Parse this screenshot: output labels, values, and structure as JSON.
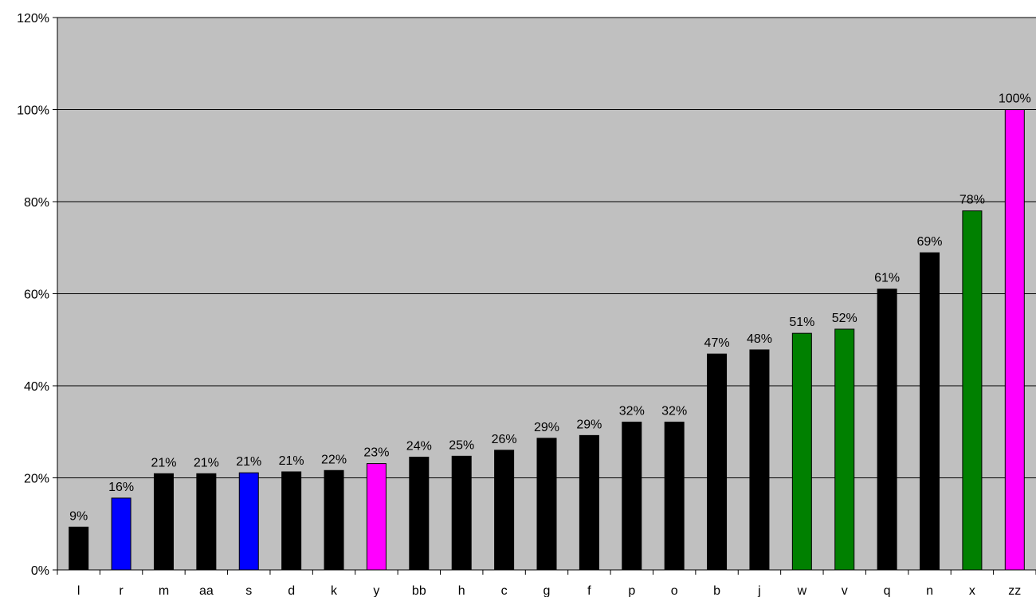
{
  "chart_data": {
    "type": "bar",
    "categories": [
      "l",
      "r",
      "m",
      "aa",
      "s",
      "d",
      "k",
      "y",
      "bb",
      "h",
      "c",
      "g",
      "f",
      "p",
      "o",
      "b",
      "j",
      "w",
      "v",
      "q",
      "n",
      "x",
      "zz"
    ],
    "values": [
      9.3,
      15.6,
      20.9,
      20.9,
      21.1,
      21.3,
      21.6,
      23.1,
      24.5,
      24.7,
      26.0,
      28.6,
      29.2,
      32.1,
      32.1,
      46.9,
      47.8,
      51.4,
      52.3,
      61.0,
      68.9,
      78.0,
      100.0
    ],
    "data_labels": [
      "9%",
      "16%",
      "21%",
      "21%",
      "21%",
      "21%",
      "22%",
      "23%",
      "24%",
      "25%",
      "26%",
      "29%",
      "29%",
      "32%",
      "32%",
      "47%",
      "48%",
      "51%",
      "52%",
      "61%",
      "69%",
      "78%",
      "100%"
    ],
    "bar_colors": [
      "#000000",
      "#0000ff",
      "#000000",
      "#000000",
      "#0000ff",
      "#000000",
      "#000000",
      "#ff00ff",
      "#000000",
      "#000000",
      "#000000",
      "#000000",
      "#000000",
      "#000000",
      "#000000",
      "#000000",
      "#000000",
      "#008000",
      "#008000",
      "#000000",
      "#000000",
      "#008000",
      "#ff00ff"
    ],
    "ylim": [
      0,
      120
    ],
    "yticks": [
      0,
      20,
      40,
      60,
      80,
      100,
      120
    ],
    "ytick_labels": [
      "0%",
      "20%",
      "40%",
      "60%",
      "80%",
      "100%",
      "120%"
    ],
    "title": "",
    "xlabel": "",
    "ylabel": "",
    "grid": true,
    "legend": "none",
    "plot_background": "#c0c0c0",
    "gridline_color": "#000000"
  }
}
